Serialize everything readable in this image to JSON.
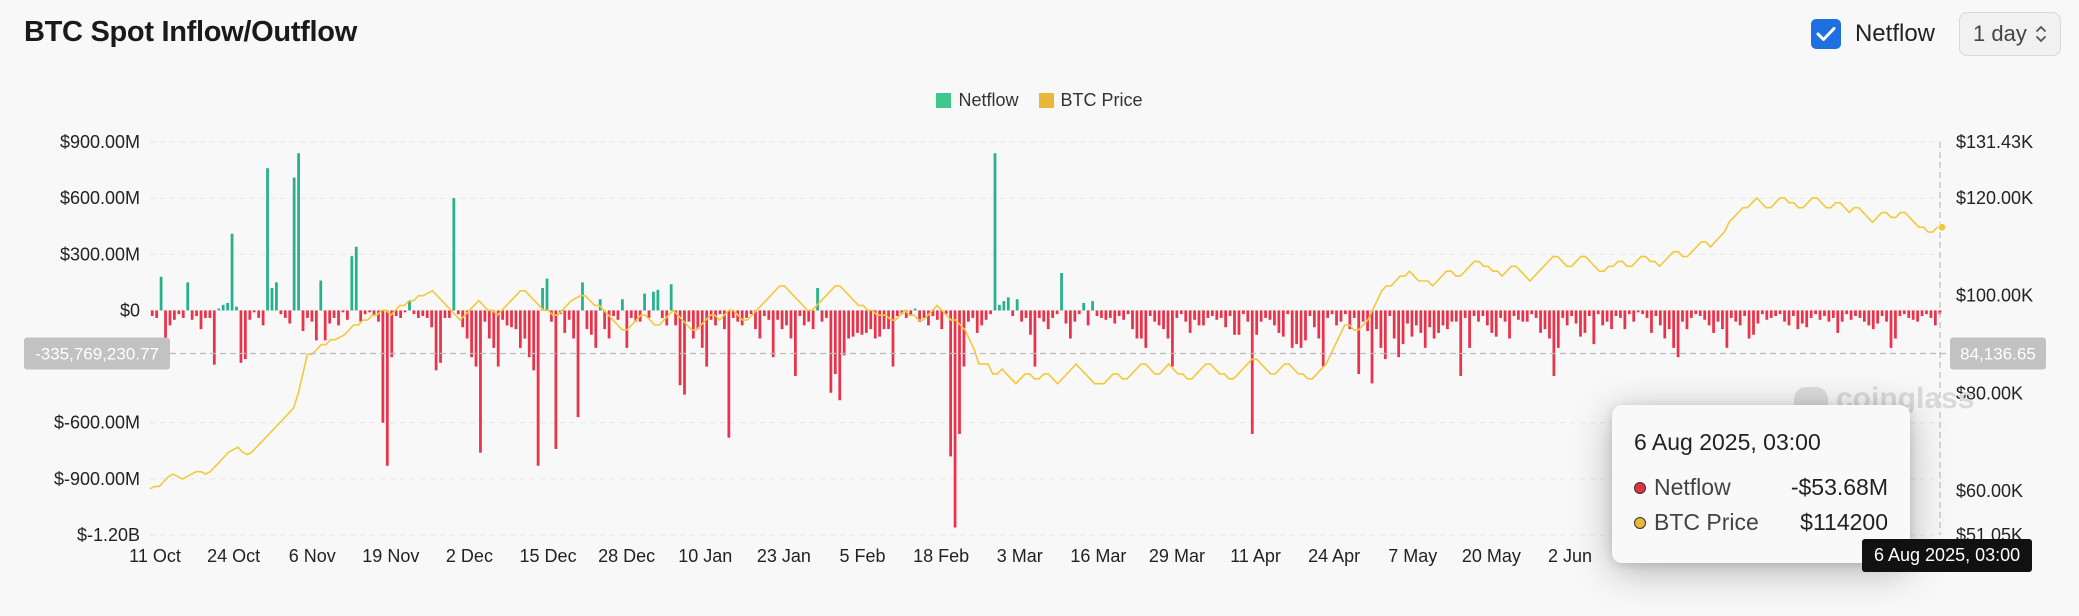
{
  "title": "BTC Spot Inflow/Outflow",
  "controls": {
    "netflow_label": "Netflow",
    "netflow_checked": true,
    "interval_value": "1 day"
  },
  "icons": {
    "check": "checkmark-icon",
    "select": "chevron-updown-icon",
    "watermark": "coinglass-logo-icon"
  },
  "watermark_text": "coinglass",
  "tooltip": {
    "date": "6 Aug 2025, 03:00",
    "rows": [
      {
        "name": "Netflow",
        "value": "-$53.68M",
        "color": "#e03340"
      },
      {
        "name": "BTC Price",
        "value": "$114200",
        "color": "#e8b839"
      }
    ]
  },
  "crosshair": {
    "y_left_label": "-335,769,230.77",
    "y_right_label": "84,136.65",
    "x_label": "6 Aug 2025, 03:00"
  },
  "colors": {
    "positive": "#27b08c",
    "negative": "#e8334a",
    "price": "#f3c93b",
    "accent": "#1e6fe0"
  },
  "chart_data": {
    "type": "bar",
    "legend": [
      {
        "name": "Netflow",
        "color": "#3cc98a"
      },
      {
        "name": "BTC Price",
        "color": "#e8b839"
      }
    ],
    "legend_position": "top-center",
    "grid": true,
    "x_tick_labels": [
      "11 Oct",
      "24 Oct",
      "6 Nov",
      "19 Nov",
      "2 Dec",
      "15 Dec",
      "28 Dec",
      "10 Jan",
      "23 Jan",
      "5 Feb",
      "18 Feb",
      "3 Mar",
      "16 Mar",
      "29 Mar",
      "11 Apr",
      "24 Apr",
      "7 May",
      "20 May",
      "2 Jun"
    ],
    "y_left": {
      "ticks": [
        "$900.00M",
        "$600.00M",
        "$300.00M",
        "$0",
        "$-600.00M",
        "$-900.00M",
        "$-1.20B"
      ],
      "tick_values": [
        900,
        600,
        300,
        0,
        -600,
        -900,
        -1200
      ],
      "range": [
        -1200,
        900
      ],
      "unit": "USD millions"
    },
    "y_right": {
      "ticks": [
        "$131.43K",
        "$120.00K",
        "$100.00K",
        "$80.00K",
        "$60.00K",
        "$51.05K"
      ],
      "tick_values": [
        131.43,
        120,
        100,
        80,
        60,
        51.05
      ],
      "range": [
        51.05,
        131.43
      ],
      "unit": "USD thousands"
    },
    "series": [
      {
        "name": "Netflow",
        "axis": "left",
        "kind": "bar",
        "values": [
          -30,
          -40,
          180,
          -170,
          -80,
          -50,
          -20,
          -40,
          150,
          -50,
          -30,
          -100,
          -40,
          -40,
          -290,
          10,
          30,
          40,
          410,
          20,
          -280,
          -260,
          -50,
          -10,
          -40,
          -80,
          760,
          120,
          150,
          -20,
          -40,
          -70,
          710,
          840,
          -110,
          -40,
          -60,
          -160,
          160,
          -160,
          -70,
          -40,
          -80,
          -10,
          -50,
          290,
          340,
          -60,
          -20,
          -10,
          -30,
          -60,
          -600,
          -830,
          -250,
          -30,
          -40,
          -10,
          50,
          -20,
          -40,
          -30,
          -40,
          -90,
          -320,
          -280,
          -40,
          -40,
          600,
          -20,
          -90,
          -150,
          -250,
          -300,
          -760,
          -60,
          -150,
          -200,
          -300,
          -50,
          -80,
          -90,
          -100,
          -200,
          -150,
          -250,
          -320,
          -830,
          120,
          170,
          -60,
          -740,
          -20,
          -120,
          -50,
          -150,
          -570,
          150,
          -100,
          -130,
          -200,
          60,
          -100,
          -150,
          -30,
          -50,
          60,
          -200,
          -40,
          -60,
          -60,
          90,
          -40,
          100,
          110,
          -40,
          -80,
          140,
          -80,
          -400,
          -450,
          -60,
          -150,
          -100,
          -200,
          -300,
          -50,
          -80,
          -20,
          -100,
          -680,
          -40,
          -60,
          -80,
          -40,
          -20,
          -100,
          -150,
          -30,
          -50,
          -250,
          -50,
          -100,
          -80,
          -150,
          -350,
          -30,
          -80,
          -60,
          -100,
          120,
          -60,
          -40,
          -440,
          -340,
          -480,
          -240,
          -150,
          -140,
          -120,
          -130,
          -120,
          -100,
          -150,
          -140,
          -100,
          -100,
          -300,
          -30,
          -20,
          -40,
          -30,
          10,
          -60,
          -40,
          -80,
          -30,
          -50,
          -100,
          -20,
          -780,
          -1160,
          -660,
          -300,
          -60,
          -40,
          -120,
          -80,
          -50,
          -20,
          840,
          30,
          50,
          70,
          -30,
          60,
          -60,
          -40,
          -130,
          -300,
          -40,
          -60,
          -100,
          -40,
          -20,
          200,
          -70,
          -150,
          -60,
          -20,
          40,
          -80,
          50,
          -30,
          -40,
          -50,
          -40,
          -70,
          -30,
          -50,
          -20,
          -100,
          -150,
          -150,
          -200,
          -30,
          -60,
          -80,
          -100,
          -150,
          -300,
          -40,
          -20,
          -60,
          -120,
          -50,
          -80,
          -80,
          -40,
          -30,
          -50,
          -40,
          -90,
          -30,
          -130,
          -130,
          -20,
          -60,
          -660,
          -130,
          -60,
          -40,
          -50,
          -80,
          -120,
          -140,
          -20,
          -200,
          -180,
          -200,
          -160,
          -30,
          -90,
          -150,
          -300,
          -40,
          -20,
          -80,
          -60,
          -20,
          -100,
          -40,
          -340,
          -60,
          -110,
          -390,
          -100,
          -200,
          -260,
          -30,
          -150,
          -250,
          -180,
          -70,
          -140,
          -80,
          -120,
          -200,
          -90,
          -150,
          -120,
          -80,
          -100,
          -60,
          -60,
          -350,
          -40,
          -200,
          -30,
          -60,
          -30,
          -80,
          -120,
          -140,
          -40,
          -60,
          -150,
          -30,
          -50,
          -60,
          -60,
          -20,
          -40,
          -120,
          -100,
          -150,
          -350,
          -200,
          -40,
          -80,
          -30,
          -70,
          -140,
          -120,
          -30,
          -180,
          -20,
          -80,
          -60,
          -100,
          -30,
          -40,
          -100,
          -20,
          -60,
          -10,
          -20,
          -40,
          -120,
          -30,
          -80,
          -150,
          -100,
          -200,
          -250,
          -60,
          -100,
          -40,
          -20,
          -30,
          -50,
          -80,
          -120,
          -60,
          -100,
          -200,
          -40,
          -60,
          -80,
          -30,
          -150,
          -130,
          -70,
          -20,
          -50,
          -40,
          -30,
          -20,
          -60,
          -80,
          -30,
          -100,
          -70,
          -90,
          -40,
          -20,
          -50,
          -30,
          -60,
          -40,
          -120,
          -60,
          -20,
          -50,
          -30,
          -40,
          -60,
          -80,
          -100,
          -70,
          -30,
          -60,
          -200,
          -150,
          -30,
          -20,
          -40,
          -50,
          -60,
          -30,
          -20,
          -40,
          -80,
          -20
        ]
      },
      {
        "name": "BTC Price",
        "axis": "right",
        "kind": "line",
        "values": [
          60.5,
          61,
          61,
          62,
          63,
          63.5,
          63,
          62.5,
          63,
          63.5,
          64,
          64,
          63.5,
          64,
          65,
          66,
          67,
          68,
          68.5,
          69,
          68,
          67.5,
          68,
          69,
          70,
          71,
          72,
          73,
          74,
          75,
          76,
          77,
          80,
          84,
          88,
          88,
          89,
          90,
          90,
          91,
          91,
          91.5,
          92,
          93,
          94,
          94,
          95,
          95,
          96,
          96,
          97,
          97,
          96,
          97,
          98,
          98,
          99,
          99,
          100,
          100,
          100.5,
          101,
          100,
          99,
          98,
          97,
          96,
          95,
          96,
          97,
          98,
          99,
          98,
          97,
          97,
          96,
          97,
          98,
          99,
          100,
          101,
          101,
          100,
          99,
          98,
          97,
          97,
          96,
          96,
          97,
          98,
          99,
          99.5,
          100,
          100,
          99,
          98,
          98,
          97,
          96,
          95,
          94,
          93,
          93,
          94,
          95,
          96,
          96,
          95,
          94,
          94,
          95,
          96,
          97,
          96,
          95,
          94,
          93,
          93,
          94,
          95,
          96,
          96,
          95,
          96,
          97,
          97,
          96,
          95,
          95,
          96,
          97,
          98,
          99,
          100,
          101,
          102,
          102,
          101,
          100,
          99,
          98,
          97,
          97,
          98,
          99,
          100,
          101,
          102,
          102,
          101,
          100,
          99,
          98,
          98,
          97,
          97,
          96,
          96,
          96,
          95,
          95,
          96,
          97,
          96,
          96,
          95,
          95,
          96,
          97,
          98,
          97,
          96,
          95,
          95,
          94,
          93,
          91,
          89,
          86,
          86,
          86,
          84,
          84,
          85,
          84,
          83,
          82,
          83,
          84,
          84,
          83,
          83,
          84,
          84,
          83,
          82,
          83,
          84,
          85,
          86,
          85,
          84,
          83,
          82,
          82,
          82,
          83,
          84,
          84,
          83,
          83,
          84,
          85,
          86,
          86,
          85,
          84,
          84,
          85,
          86,
          85,
          84,
          84,
          83,
          83,
          84,
          85,
          86,
          86,
          85,
          84,
          84,
          83,
          83,
          84,
          85,
          86,
          87,
          87,
          86,
          85,
          84,
          84,
          85,
          86,
          86,
          85,
          84,
          84,
          83,
          83,
          84,
          85,
          86,
          88,
          90,
          92,
          94,
          94,
          93,
          93,
          94,
          95,
          97,
          99,
          101,
          102,
          102,
          103,
          104,
          104,
          105,
          104,
          103,
          103,
          103,
          102,
          103,
          104,
          105,
          105,
          104,
          104,
          105,
          106,
          107,
          107,
          106,
          106,
          105,
          105,
          104,
          105,
          106,
          106,
          105,
          104,
          103,
          104,
          105,
          106,
          107,
          108,
          108,
          107,
          106,
          106,
          107,
          108,
          108,
          107,
          106,
          105,
          105,
          106,
          106,
          107,
          107,
          106,
          106,
          107,
          108,
          108,
          107,
          107,
          106,
          107,
          108,
          109,
          109,
          108,
          108,
          109,
          110,
          111,
          111,
          110,
          111,
          112,
          113,
          115,
          116,
          117,
          118,
          118,
          119,
          120,
          119,
          118,
          118,
          119,
          120,
          120,
          119,
          119,
          118,
          118,
          119,
          120,
          120,
          119,
          118,
          118,
          119,
          119,
          118,
          117,
          118,
          118,
          117,
          116,
          115,
          116,
          117,
          117,
          116,
          116,
          117,
          117,
          116,
          115,
          114,
          114,
          113,
          113,
          114,
          114
        ]
      }
    ]
  }
}
